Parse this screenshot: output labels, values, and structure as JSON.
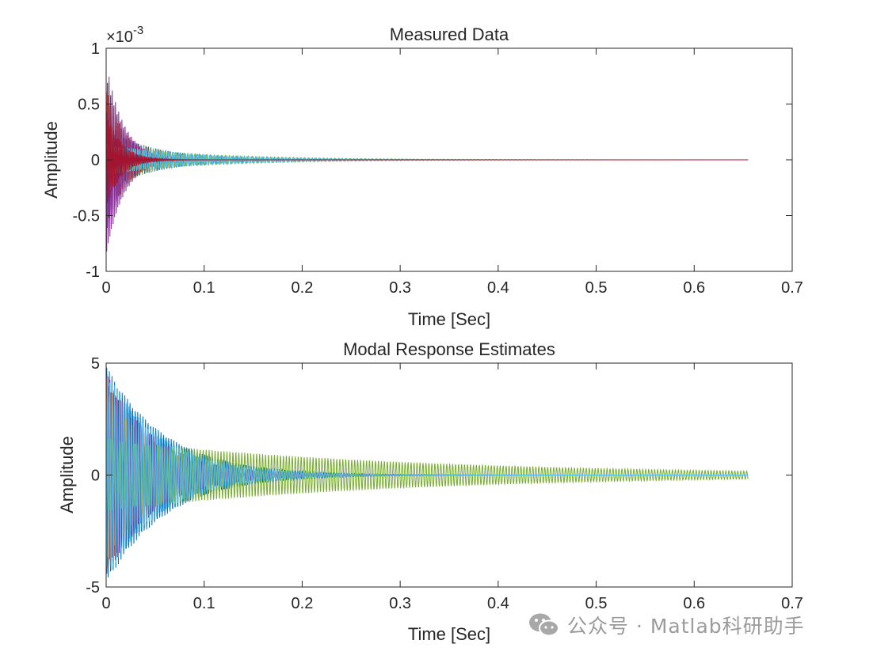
{
  "colors": [
    "#0072BD",
    "#D95319",
    "#EDB120",
    "#7E2F8E",
    "#77AC30",
    "#4DBEEE",
    "#A2142F"
  ],
  "chart_data": [
    {
      "type": "line",
      "title": "Measured Data",
      "xlabel": "Time [Sec]",
      "ylabel": "Amplitude",
      "xlim": [
        0,
        0.7
      ],
      "ylim": [
        -1,
        1
      ],
      "xticks": [
        "0",
        "0.1",
        "0.2",
        "0.3",
        "0.4",
        "0.5",
        "0.6",
        "0.7"
      ],
      "yticks": [
        "-1",
        "-0.5",
        "0",
        "0.5",
        "1"
      ],
      "y_exponent": "×10",
      "y_exponent_power": "-3",
      "grid": false,
      "legend": "none",
      "x_end": 0.655,
      "series": [
        {
          "color": "#0072BD",
          "amp": 0.28,
          "decay": 0.05,
          "freq": 400
        },
        {
          "color": "#D95319",
          "amp": 0.65,
          "decay": 0.02,
          "freq": 520
        },
        {
          "color": "#EDB120",
          "amp": 0.3,
          "decay": 0.045,
          "freq": 310
        },
        {
          "color": "#7E2F8E",
          "amp": 0.88,
          "decay": 0.018,
          "freq": 610
        },
        {
          "color": "#77AC30",
          "amp": 0.12,
          "decay": 0.11,
          "freq": 260
        },
        {
          "color": "#4DBEEE",
          "amp": 0.14,
          "decay": 0.09,
          "freq": 450
        },
        {
          "color": "#A2142F",
          "amp": 0.45,
          "decay": 0.015,
          "freq": 700
        }
      ]
    },
    {
      "type": "line",
      "title": "Modal Response Estimates",
      "xlabel": "Time [Sec]",
      "ylabel": "Amplitude",
      "xlim": [
        0,
        0.7
      ],
      "ylim": [
        -5,
        5
      ],
      "xticks": [
        "0",
        "0.1",
        "0.2",
        "0.3",
        "0.4",
        "0.5",
        "0.6",
        "0.7"
      ],
      "yticks": [
        "-5",
        "0",
        "5"
      ],
      "grid": false,
      "legend": "none",
      "x_end": 0.655,
      "series": [
        {
          "color": "#0072BD",
          "amp": 4.9,
          "decay": 0.06,
          "freq": 380
        },
        {
          "color": "#D95319",
          "amp": 4.4,
          "decay": 0.045,
          "freq": 430
        },
        {
          "color": "#EDB120",
          "amp": 3.8,
          "decay": 0.05,
          "freq": 300
        },
        {
          "color": "#7E2F8E",
          "amp": 4.6,
          "decay": 0.05,
          "freq": 470
        },
        {
          "color": "#77AC30",
          "amp": 1.6,
          "decay": 0.3,
          "freq": 330
        },
        {
          "color": "#4DBEEE",
          "amp": 4.7,
          "decay": 0.055,
          "freq": 410
        }
      ]
    }
  ],
  "watermark": {
    "text": "公众号 · Matlab科研助手",
    "icon": "wechat-icon"
  }
}
